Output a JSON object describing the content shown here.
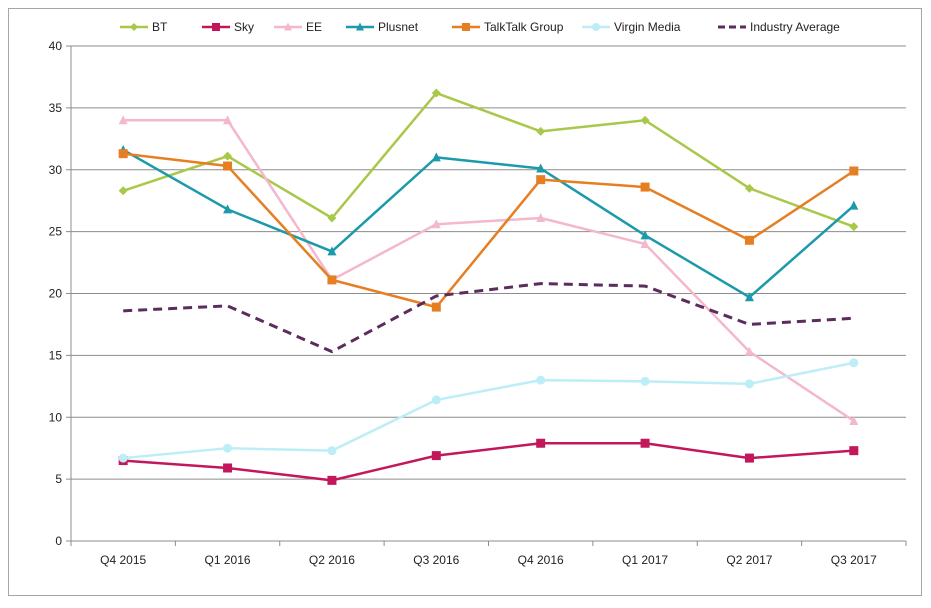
{
  "chart_data": {
    "type": "line",
    "title": "",
    "xlabel": "",
    "ylabel": "",
    "categories": [
      "Q4 2015",
      "Q1 2016",
      "Q2 2016",
      "Q3 2016",
      "Q4 2016",
      "Q1 2017",
      "Q2 2017",
      "Q3 2017"
    ],
    "ylim": [
      0,
      40
    ],
    "yticks": [
      0,
      5,
      10,
      15,
      20,
      25,
      30,
      35,
      40
    ],
    "grid": true,
    "legend_position": "top",
    "series": [
      {
        "name": "BT",
        "color": "#a9c84a",
        "marker": "diamond",
        "dash": false,
        "values": [
          28.3,
          31.1,
          26.1,
          36.2,
          33.1,
          34.0,
          28.5,
          25.4
        ]
      },
      {
        "name": "Sky",
        "color": "#c2185b",
        "marker": "square",
        "dash": false,
        "values": [
          6.5,
          5.9,
          4.9,
          6.9,
          7.9,
          7.9,
          6.7,
          7.3
        ]
      },
      {
        "name": "EE",
        "color": "#f4b8cc",
        "marker": "triangle",
        "dash": false,
        "values": [
          34.0,
          34.0,
          21.1,
          25.6,
          26.1,
          24.0,
          15.3,
          9.7
        ]
      },
      {
        "name": "Plusnet",
        "color": "#1b9aaa",
        "marker": "triangle",
        "dash": false,
        "values": [
          31.6,
          26.8,
          23.4,
          31.0,
          30.1,
          24.7,
          19.7,
          27.1
        ]
      },
      {
        "name": "TalkTalk Group",
        "color": "#e67e22",
        "marker": "square",
        "dash": false,
        "values": [
          31.3,
          30.3,
          21.1,
          18.9,
          29.2,
          28.6,
          24.3,
          29.9
        ]
      },
      {
        "name": "Virgin Media",
        "color": "#bdeef7",
        "marker": "circle",
        "dash": false,
        "values": [
          6.7,
          7.5,
          7.3,
          11.4,
          13.0,
          12.9,
          12.7,
          14.4
        ]
      },
      {
        "name": "Industry Average",
        "color": "#5b2c5c",
        "marker": "none",
        "dash": true,
        "values": [
          18.6,
          19.0,
          15.3,
          19.8,
          20.8,
          20.6,
          17.5,
          18.0
        ]
      }
    ]
  }
}
